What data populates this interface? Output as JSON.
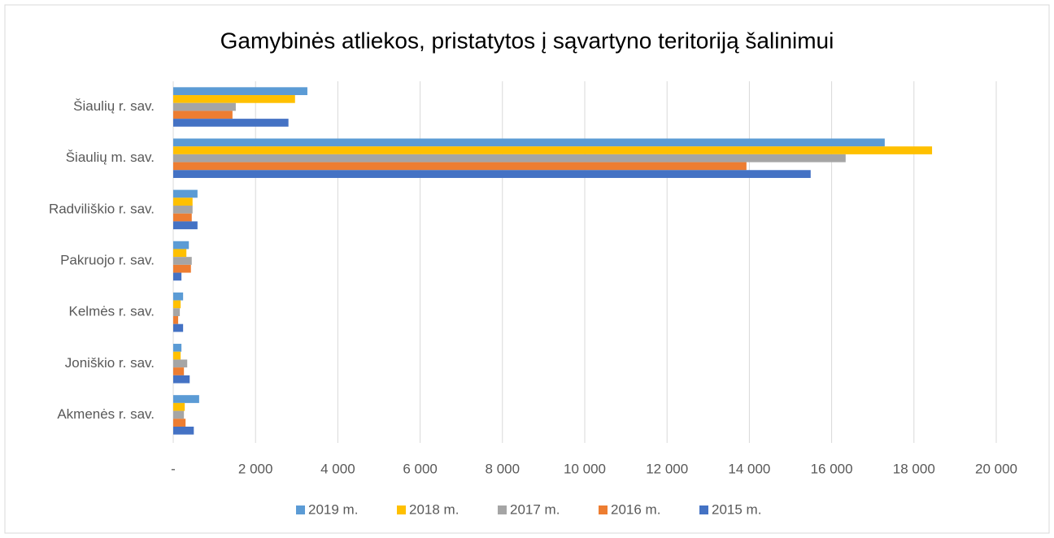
{
  "chart_data": {
    "type": "bar",
    "orientation": "horizontal",
    "title": "Gamybinės atliekos, pristatytos į sąvartyno teritoriją šalinimui",
    "categories": [
      "Šiaulių r. sav.",
      "Šiaulių m. sav.",
      "Radviliškio r. sav.",
      "Pakruojo r. sav.",
      "Kelmės r. sav.",
      "Joniškio r. sav.",
      "Akmenės r. sav."
    ],
    "series": [
      {
        "name": "2019 m.",
        "color": "#5b9bd5",
        "values": [
          3260,
          17290,
          590,
          380,
          240,
          200,
          630
        ]
      },
      {
        "name": "2018 m.",
        "color": "#ffc000",
        "values": [
          2960,
          18440,
          470,
          320,
          180,
          180,
          280
        ]
      },
      {
        "name": "2017 m.",
        "color": "#a5a5a5",
        "values": [
          1520,
          16340,
          470,
          450,
          160,
          340,
          260
        ]
      },
      {
        "name": "2016 m.",
        "color": "#ed7d31",
        "values": [
          1440,
          13930,
          450,
          430,
          120,
          260,
          300
        ]
      },
      {
        "name": "2015 m.",
        "color": "#4472c4",
        "values": [
          2800,
          15490,
          590,
          200,
          240,
          400,
          500
        ]
      }
    ],
    "xlim": [
      0,
      20000
    ],
    "xticks": [
      {
        "value": 0,
        "label": "-"
      },
      {
        "value": 2000,
        "label": "2 000"
      },
      {
        "value": 4000,
        "label": "4 000"
      },
      {
        "value": 6000,
        "label": "6 000"
      },
      {
        "value": 8000,
        "label": "8 000"
      },
      {
        "value": 10000,
        "label": "10 000"
      },
      {
        "value": 12000,
        "label": "12 000"
      },
      {
        "value": 14000,
        "label": "14 000"
      },
      {
        "value": 16000,
        "label": "16 000"
      },
      {
        "value": 18000,
        "label": "18 000"
      },
      {
        "value": 20000,
        "label": "20 000"
      }
    ],
    "grid": true,
    "legend": "bottom"
  }
}
